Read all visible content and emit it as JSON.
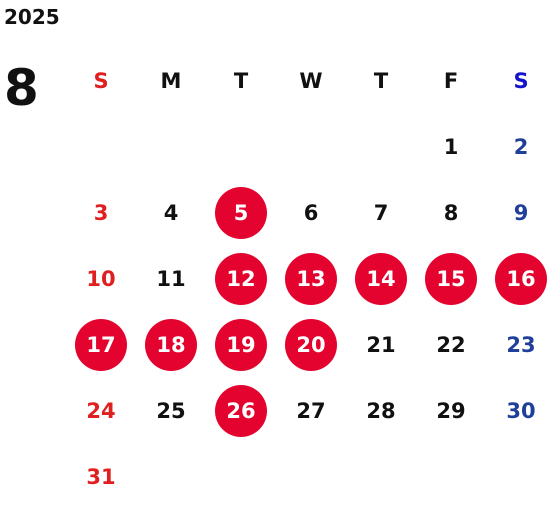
{
  "year": "2025",
  "month": "8",
  "colors": {
    "sunday": "#e02020",
    "saturday": "#1f3f99",
    "saturday_header": "#1414cc",
    "weekday": "#111111",
    "highlight_bg": "#e4032e",
    "highlight_text": "#ffffff"
  },
  "weekdays": [
    "S",
    "M",
    "T",
    "W",
    "T",
    "F",
    "S"
  ],
  "weeks": [
    [
      "",
      "",
      "",
      "",
      "",
      "1",
      "2"
    ],
    [
      "3",
      "4",
      "5",
      "6",
      "7",
      "8",
      "9"
    ],
    [
      "10",
      "11",
      "12",
      "13",
      "14",
      "15",
      "16"
    ],
    [
      "17",
      "18",
      "19",
      "20",
      "21",
      "22",
      "23"
    ],
    [
      "24",
      "25",
      "26",
      "27",
      "28",
      "29",
      "30"
    ],
    [
      "31",
      "",
      "",
      "",
      "",
      "",
      ""
    ]
  ],
  "highlighted_days": [
    "5",
    "12",
    "13",
    "14",
    "15",
    "16",
    "17",
    "18",
    "19",
    "20",
    "26"
  ]
}
